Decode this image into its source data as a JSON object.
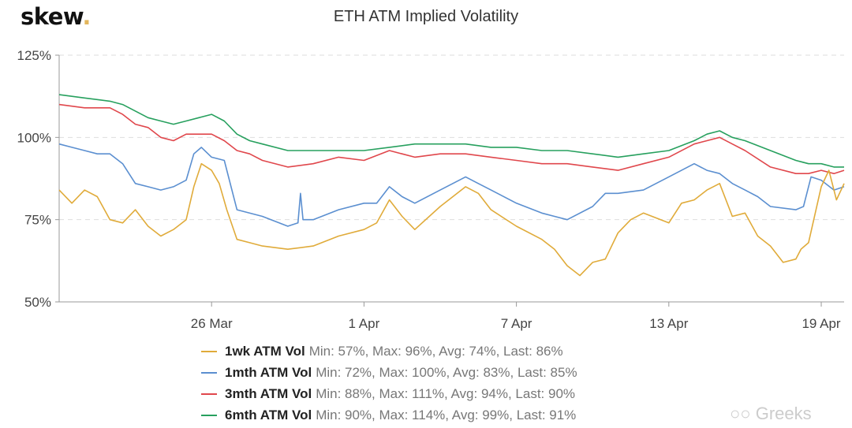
{
  "brand": {
    "logo": "skew",
    "logo_dot": "."
  },
  "watermark": {
    "icon": "wechat-icon",
    "text": "Greeks"
  },
  "chart_data": {
    "type": "line",
    "title": "ETH ATM Implied Volatility",
    "xlabel": "",
    "ylabel": "",
    "x_unit": "days since 20 Mar",
    "xlim": [
      0,
      30.9
    ],
    "ylim": [
      50,
      125
    ],
    "y_ticks": [
      {
        "value": 125,
        "label": "125%"
      },
      {
        "value": 100,
        "label": "100%"
      },
      {
        "value": 75,
        "label": "75%"
      },
      {
        "value": 50,
        "label": "50%"
      }
    ],
    "x_ticks": [
      {
        "value": 6,
        "label": "26 Mar"
      },
      {
        "value": 12,
        "label": "1 Apr"
      },
      {
        "value": 18,
        "label": "7 Apr"
      },
      {
        "value": 24,
        "label": "13 Apr"
      },
      {
        "value": 30,
        "label": "19 Apr"
      }
    ],
    "grid": "horizontal-dashed",
    "legend_position": "bottom",
    "series": [
      {
        "name": "1wk ATM Vol",
        "stats": "Min: 57%, Max: 96%, Avg: 74%, Last: 86%",
        "color": "#e0ab3a",
        "x": [
          0,
          0.5,
          1,
          1.5,
          2,
          2.5,
          3,
          3.5,
          4,
          4.5,
          5,
          5.3,
          5.6,
          6,
          6.3,
          6.6,
          7,
          7.5,
          8,
          9,
          10,
          11,
          12,
          12.5,
          13,
          13.5,
          14,
          15,
          16,
          16.5,
          17,
          18,
          19,
          19.5,
          20,
          20.5,
          21,
          21.5,
          22,
          22.5,
          23,
          24,
          24.5,
          25,
          25.5,
          26,
          26.5,
          27,
          27.5,
          28,
          28.5,
          29,
          29.2,
          29.5,
          30,
          30.3,
          30.6,
          30.9
        ],
        "y": [
          84,
          80,
          84,
          82,
          75,
          74,
          78,
          73,
          70,
          72,
          75,
          85,
          92,
          90,
          86,
          78,
          69,
          68,
          67,
          66,
          67,
          70,
          72,
          74,
          81,
          76,
          72,
          79,
          85,
          83,
          78,
          73,
          69,
          66,
          61,
          58,
          62,
          63,
          71,
          75,
          77,
          74,
          80,
          81,
          84,
          86,
          76,
          77,
          70,
          67,
          62,
          63,
          66,
          68,
          85,
          90,
          81,
          86
        ]
      },
      {
        "name": "1mth ATM Vol",
        "stats": "Min: 72%, Max: 100%, Avg: 83%, Last: 85%",
        "color": "#5b8fd0",
        "x": [
          0,
          0.5,
          1,
          1.5,
          2,
          2.5,
          3,
          3.5,
          4,
          4.5,
          5,
          5.3,
          5.6,
          6,
          6.5,
          7,
          8,
          9,
          9.4,
          9.5,
          9.6,
          10,
          11,
          12,
          12.5,
          13,
          13.5,
          14,
          15,
          16,
          16.5,
          17,
          18,
          19,
          19.5,
          20,
          21,
          21.5,
          22,
          23,
          24,
          24.5,
          25,
          25.5,
          26,
          26.5,
          27,
          27.5,
          28,
          29,
          29.3,
          29.6,
          30,
          30.5,
          30.9
        ],
        "y": [
          98,
          97,
          96,
          95,
          95,
          92,
          86,
          85,
          84,
          85,
          87,
          95,
          97,
          94,
          93,
          78,
          76,
          73,
          74,
          83,
          75,
          75,
          78,
          80,
          80,
          85,
          82,
          80,
          84,
          88,
          86,
          84,
          80,
          77,
          76,
          75,
          79,
          83,
          83,
          84,
          88,
          90,
          92,
          90,
          89,
          86,
          84,
          82,
          79,
          78,
          79,
          88,
          87,
          84,
          85
        ]
      },
      {
        "name": "3mth ATM Vol",
        "stats": "Min: 88%, Max: 111%, Avg: 94%, Last: 90%",
        "color": "#e0474c",
        "x": [
          0,
          1,
          2,
          2.5,
          3,
          3.5,
          4,
          4.5,
          5,
          5.5,
          6,
          6.5,
          7,
          7.5,
          8,
          9,
          10,
          11,
          12,
          13,
          14,
          15,
          16,
          17,
          18,
          19,
          20,
          21,
          22,
          23,
          24,
          25,
          25.5,
          26,
          26.5,
          27,
          28,
          29,
          29.5,
          30,
          30.5,
          30.9
        ],
        "y": [
          110,
          109,
          109,
          107,
          104,
          103,
          100,
          99,
          101,
          101,
          101,
          99,
          96,
          95,
          93,
          91,
          92,
          94,
          93,
          96,
          94,
          95,
          95,
          94,
          93,
          92,
          92,
          91,
          90,
          92,
          94,
          98,
          99,
          100,
          98,
          96,
          91,
          89,
          89,
          90,
          89,
          90
        ]
      },
      {
        "name": "6mth ATM Vol",
        "stats": "Min: 90%, Max: 114%, Avg: 99%, Last: 91%",
        "color": "#27a05e",
        "x": [
          0,
          1,
          2,
          2.5,
          3,
          3.5,
          4,
          4.5,
          5,
          5.5,
          6,
          6.5,
          7,
          7.5,
          8,
          9,
          10,
          11,
          12,
          13,
          14,
          15,
          16,
          17,
          18,
          19,
          20,
          21,
          22,
          23,
          24,
          25,
          25.5,
          26,
          26.5,
          27,
          28,
          29,
          29.5,
          30,
          30.5,
          30.9
        ],
        "y": [
          113,
          112,
          111,
          110,
          108,
          106,
          105,
          104,
          105,
          106,
          107,
          105,
          101,
          99,
          98,
          96,
          96,
          96,
          96,
          97,
          98,
          98,
          98,
          97,
          97,
          96,
          96,
          95,
          94,
          95,
          96,
          99,
          101,
          102,
          100,
          99,
          96,
          93,
          92,
          92,
          91,
          91
        ]
      }
    ]
  }
}
